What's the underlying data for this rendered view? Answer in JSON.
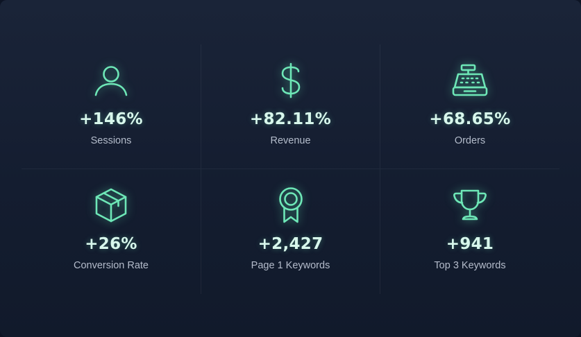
{
  "metrics": [
    {
      "value": "+146%",
      "label": "Sessions",
      "icon": "user-icon"
    },
    {
      "value": "+82.11%",
      "label": "Revenue",
      "icon": "dollar-icon"
    },
    {
      "value": "+68.65%",
      "label": "Orders",
      "icon": "cash-register-icon"
    },
    {
      "value": "+26%",
      "label": "Conversion Rate",
      "icon": "box-icon"
    },
    {
      "value": "+2,427",
      "label": "Page 1 Keywords",
      "icon": "award-ribbon-icon"
    },
    {
      "value": "+941",
      "label": "Top 3 Keywords",
      "icon": "trophy-icon"
    }
  ],
  "colors": {
    "accent": "#6ee7b7",
    "background": "#141d30",
    "value_text": "#d8f7ec",
    "label_text": "#b4bccb"
  }
}
